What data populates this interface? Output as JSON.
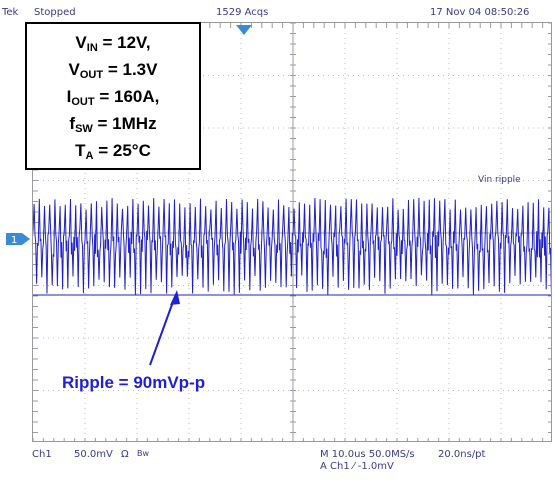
{
  "top_bar": {
    "brand": "Tek",
    "run_state": "Stopped",
    "acquisitions": "1529 Acqs",
    "datetime": "17 Nov 04 08:50:26"
  },
  "params_box": {
    "vin": {
      "sym": "V",
      "sub": "IN",
      "val": " = 12V,"
    },
    "vout": {
      "sym": "V",
      "sub": "OUT",
      "val": " = 1.3V"
    },
    "iout": {
      "sym": "I",
      "sub": "OUT",
      "val": " = 160A,"
    },
    "fsw": {
      "sym": "f",
      "sub": "SW",
      "val": " = 1MHz"
    },
    "ta": {
      "sym": "T",
      "sub": "A",
      "val": " = 25°C"
    }
  },
  "waveform_label": "Vin ripple",
  "channel_marker": "1",
  "annotation": "Ripple = 90mVp-p",
  "bottom_bar": {
    "channel": "Ch1",
    "scale": "50.0mV",
    "coupling": "Ω",
    "bw": "Bw",
    "timebase": "M 10.0us 50.0MS/s",
    "resolution": "20.0ns/pt",
    "trigger": "A  Ch1  ⁄  -1.0mV"
  },
  "colors": {
    "trace": "#2020c8",
    "grid": "#b8b8c8",
    "annotation": "#1f1fd6",
    "ui_text": "#3a3a8a",
    "marker": "#3a8ad6"
  },
  "icons": {
    "trigger_position": "trigger-position-marker-icon",
    "channel_marker": "channel-ground-marker-icon",
    "arrow": "annotation-arrow-icon"
  }
}
